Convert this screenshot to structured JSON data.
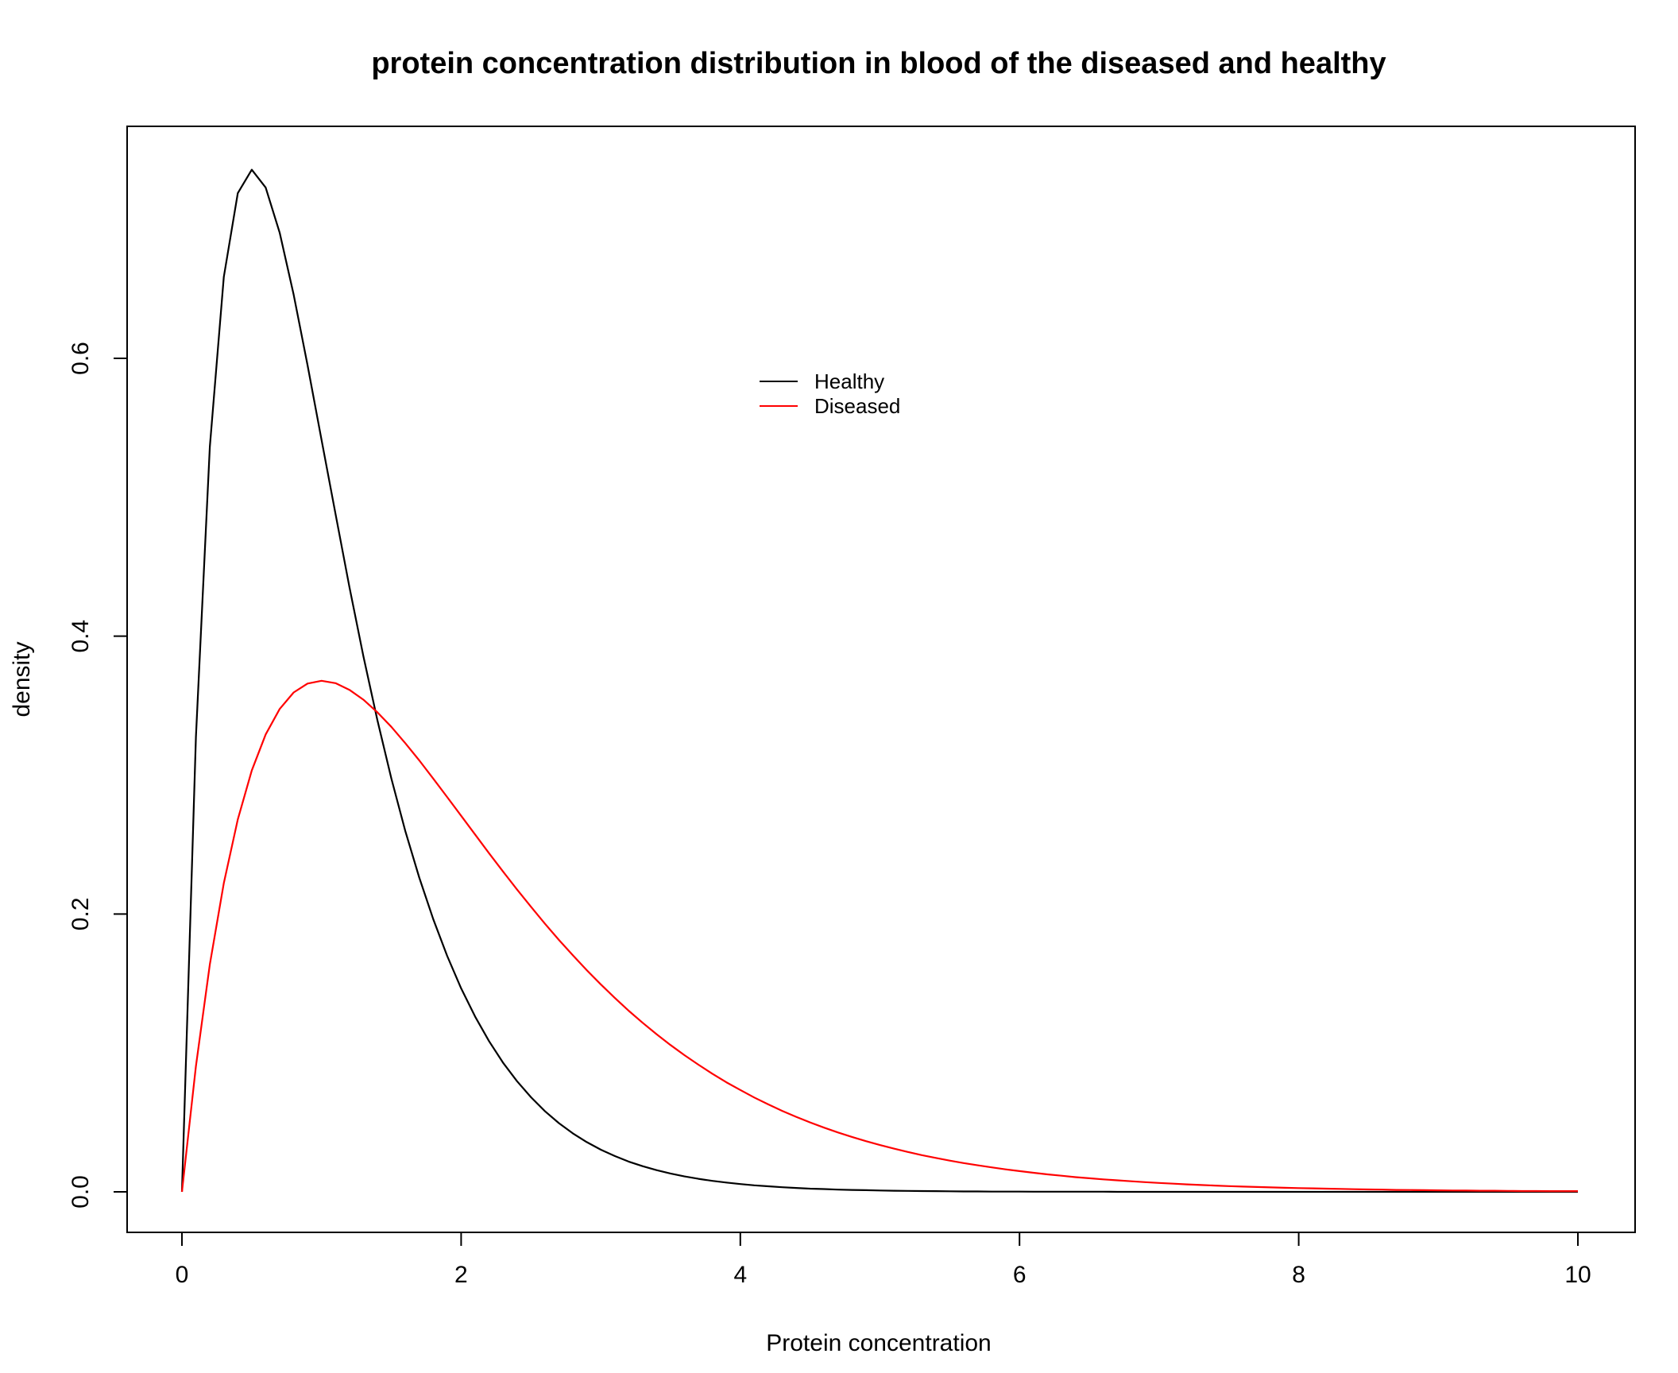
{
  "chart_data": {
    "type": "line",
    "title": "protein concentration distribution in blood of the diseased and healthy",
    "xlabel": "Protein concentration",
    "ylabel": "density",
    "xlim": [
      0,
      10
    ],
    "ylim": [
      0,
      0.74
    ],
    "xticks": [
      0,
      2,
      4,
      6,
      8,
      10
    ],
    "xtick_labels": [
      "0",
      "2",
      "4",
      "6",
      "8",
      "10"
    ],
    "yticks": [
      0.0,
      0.2,
      0.4,
      0.6
    ],
    "ytick_labels": [
      "0.0",
      "0.2",
      "0.4",
      "0.6"
    ],
    "grid": false,
    "legend_position": "top-center",
    "x": [
      0,
      0.1,
      0.2,
      0.3,
      0.4,
      0.5,
      0.6,
      0.7,
      0.8,
      0.9,
      1.0,
      1.1,
      1.2,
      1.3,
      1.4,
      1.5,
      1.6,
      1.7,
      1.8,
      1.9,
      2.0,
      2.1,
      2.2,
      2.3,
      2.4,
      2.5,
      2.6,
      2.7,
      2.8,
      2.9,
      3.0,
      3.1,
      3.2,
      3.3,
      3.4,
      3.5,
      3.6,
      3.7,
      3.8,
      3.9,
      4.0,
      4.1,
      4.2,
      4.3,
      4.4,
      4.5,
      4.6,
      4.7,
      4.8,
      4.9,
      5.0,
      5.1,
      5.2,
      5.3,
      5.4,
      5.5,
      5.6,
      5.7,
      5.8,
      5.9,
      6.0,
      6.1,
      6.2,
      6.3,
      6.4,
      6.5,
      6.6,
      6.7,
      6.8,
      6.9,
      7.0,
      7.1,
      7.2,
      7.3,
      7.4,
      7.5,
      7.6,
      7.7,
      7.8,
      7.9,
      8.0,
      8.1,
      8.2,
      8.3,
      8.4,
      8.5,
      8.6,
      8.7,
      8.8,
      8.9,
      9.0,
      9.1,
      9.2,
      9.3,
      9.4,
      9.5,
      9.6,
      9.7,
      9.8,
      9.9,
      10.0
    ],
    "series": [
      {
        "name": "Healthy",
        "color": "#000000",
        "values": [
          0.0,
          0.3275,
          0.5363,
          0.6586,
          0.7189,
          0.7358,
          0.7229,
          0.6905,
          0.6459,
          0.5951,
          0.5413,
          0.488,
          0.4354,
          0.3855,
          0.3395,
          0.2975,
          0.2598,
          0.2262,
          0.1963,
          0.1699,
          0.1465,
          0.1262,
          0.1085,
          0.093,
          0.0797,
          0.0681,
          0.0581,
          0.0495,
          0.0421,
          0.0358,
          0.0304,
          0.0258,
          0.0218,
          0.0185,
          0.0156,
          0.0132,
          0.0111,
          0.0094,
          0.0079,
          0.0067,
          0.0056,
          0.0047,
          0.004,
          0.0033,
          0.0028,
          0.0023,
          0.002,
          0.0016,
          0.0014,
          0.0012,
          0.001,
          0.0008,
          0.0007,
          0.0006,
          0.0005,
          0.0004,
          0.0003,
          0.0003,
          0.0002,
          0.0002,
          0.0002,
          0.0001,
          0.0001,
          0.0001,
          0.0001,
          0.0001,
          0.0001,
          0.0,
          0.0,
          0.0,
          0.0,
          0.0,
          0.0,
          0.0,
          0.0,
          0.0,
          0.0,
          0.0,
          0.0,
          0.0,
          0.0,
          0.0,
          0.0,
          0.0,
          0.0,
          0.0,
          0.0,
          0.0,
          0.0,
          0.0,
          0.0,
          0.0,
          0.0,
          0.0,
          0.0,
          0.0,
          0.0,
          0.0,
          0.0,
          0.0,
          0.0
        ]
      },
      {
        "name": "Diseased",
        "color": "#ff0000",
        "values": [
          0.0,
          0.0905,
          0.1637,
          0.2222,
          0.2681,
          0.3033,
          0.3293,
          0.3476,
          0.3595,
          0.3659,
          0.3679,
          0.3662,
          0.3614,
          0.3543,
          0.3452,
          0.3347,
          0.323,
          0.3106,
          0.2975,
          0.2842,
          0.2707,
          0.2572,
          0.2438,
          0.2306,
          0.2177,
          0.2052,
          0.1931,
          0.1814,
          0.1703,
          0.1596,
          0.1494,
          0.1397,
          0.1304,
          0.1217,
          0.1135,
          0.1057,
          0.0984,
          0.0915,
          0.085,
          0.0789,
          0.0733,
          0.0679,
          0.063,
          0.0583,
          0.054,
          0.05,
          0.0462,
          0.0427,
          0.0395,
          0.0365,
          0.0337,
          0.0311,
          0.0287,
          0.0264,
          0.0244,
          0.0225,
          0.0207,
          0.0191,
          0.0176,
          0.0162,
          0.0149,
          0.0137,
          0.0126,
          0.0116,
          0.0106,
          0.0098,
          0.009,
          0.0083,
          0.0076,
          0.007,
          0.0064,
          0.0059,
          0.0054,
          0.0049,
          0.0045,
          0.0041,
          0.0038,
          0.0035,
          0.0032,
          0.0029,
          0.0027,
          0.0025,
          0.0023,
          0.0021,
          0.0019,
          0.0017,
          0.0016,
          0.0014,
          0.0013,
          0.0012,
          0.0011,
          0.001,
          0.0009,
          0.0008,
          0.0008,
          0.0007,
          0.0006,
          0.0006,
          0.0005,
          0.0005,
          0.0005
        ]
      }
    ]
  }
}
